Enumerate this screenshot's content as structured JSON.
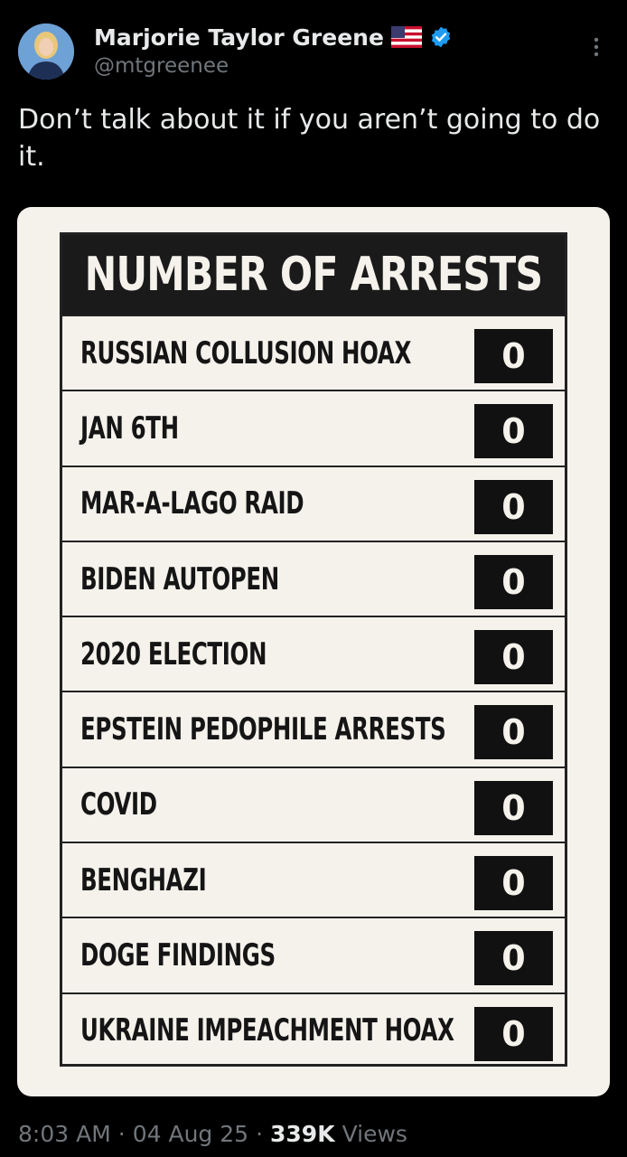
{
  "author": {
    "display_name": "Marjorie Taylor Greene",
    "handle": "@mtgreenee",
    "avatar_icon": "profile-avatar",
    "flag_icon": "us-flag-icon",
    "verified_icon": "verified-badge-icon",
    "verified_color": "#1d9bf0"
  },
  "tweet": {
    "text": "Don’t talk about it if you aren’t going to do it."
  },
  "media_table": {
    "title": "NUMBER OF ARRESTS",
    "rows": [
      {
        "label": "RUSSIAN COLLUSION HOAX",
        "count": "0"
      },
      {
        "label": "JAN 6TH",
        "count": "0"
      },
      {
        "label": "MAR-A-LAGO RAID",
        "count": "0"
      },
      {
        "label": "BIDEN AUTOPEN",
        "count": "0"
      },
      {
        "label": "2020 ELECTION",
        "count": "0"
      },
      {
        "label": "EPSTEIN PEDOPHILE ARRESTS",
        "count": "0"
      },
      {
        "label": "COVID",
        "count": "0"
      },
      {
        "label": "BENGHAZI",
        "count": "0"
      },
      {
        "label": "DOGE FINDINGS",
        "count": "0"
      },
      {
        "label": "UKRAINE IMPEACHMENT HOAX",
        "count": "0"
      }
    ]
  },
  "meta": {
    "time": "8:03 AM",
    "separator": "·",
    "date": "04 Aug 25",
    "views_count": "339K",
    "views_label": "Views"
  },
  "colors": {
    "background": "#000000",
    "text_primary": "#e7e9ea",
    "text_secondary": "#71767b",
    "card_background": "#f5f2ec"
  }
}
